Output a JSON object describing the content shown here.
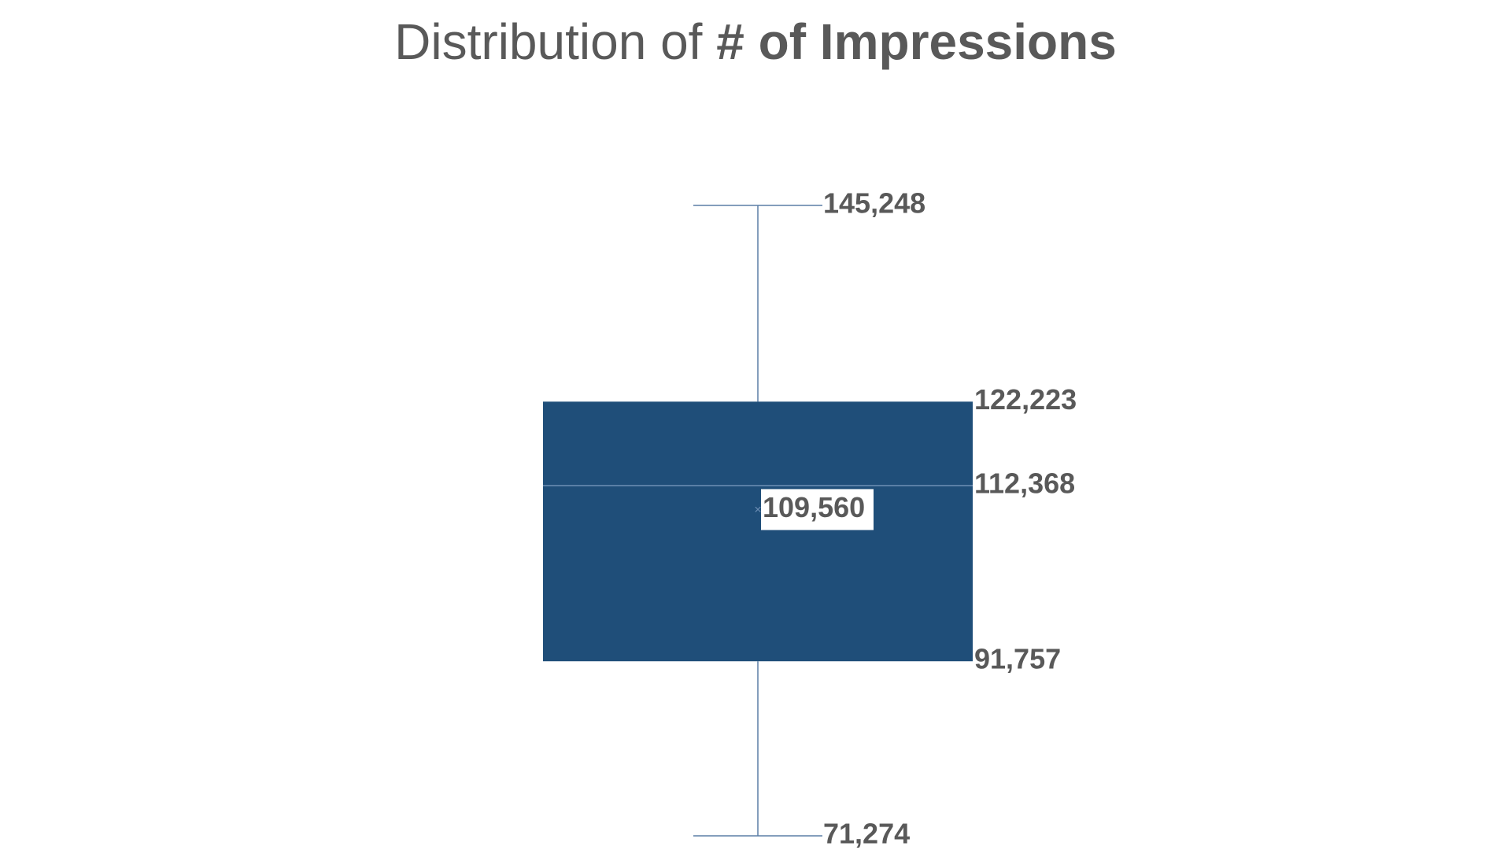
{
  "chart_data": {
    "type": "box",
    "title_regular": "Distribution of ",
    "title_bold": "# of Impressions",
    "series": [
      {
        "min": 71274,
        "q1": 91757,
        "median": 112368,
        "q3": 122223,
        "max": 145248,
        "mean": 109560,
        "labels": {
          "min": "71,274",
          "q1": "91,757",
          "median": "112,368",
          "q3": "122,223",
          "max": "145,248",
          "mean": "109,560"
        }
      }
    ],
    "ylim": [
      71274,
      145248
    ],
    "grid": false,
    "legend": "none",
    "colors": {
      "box_fill": "#1F4E79",
      "whisker": "#5B7FA6",
      "median_line": "#6E8FB5",
      "label_text": "#595959",
      "mean_label_bg": "#FFFFFF"
    }
  }
}
